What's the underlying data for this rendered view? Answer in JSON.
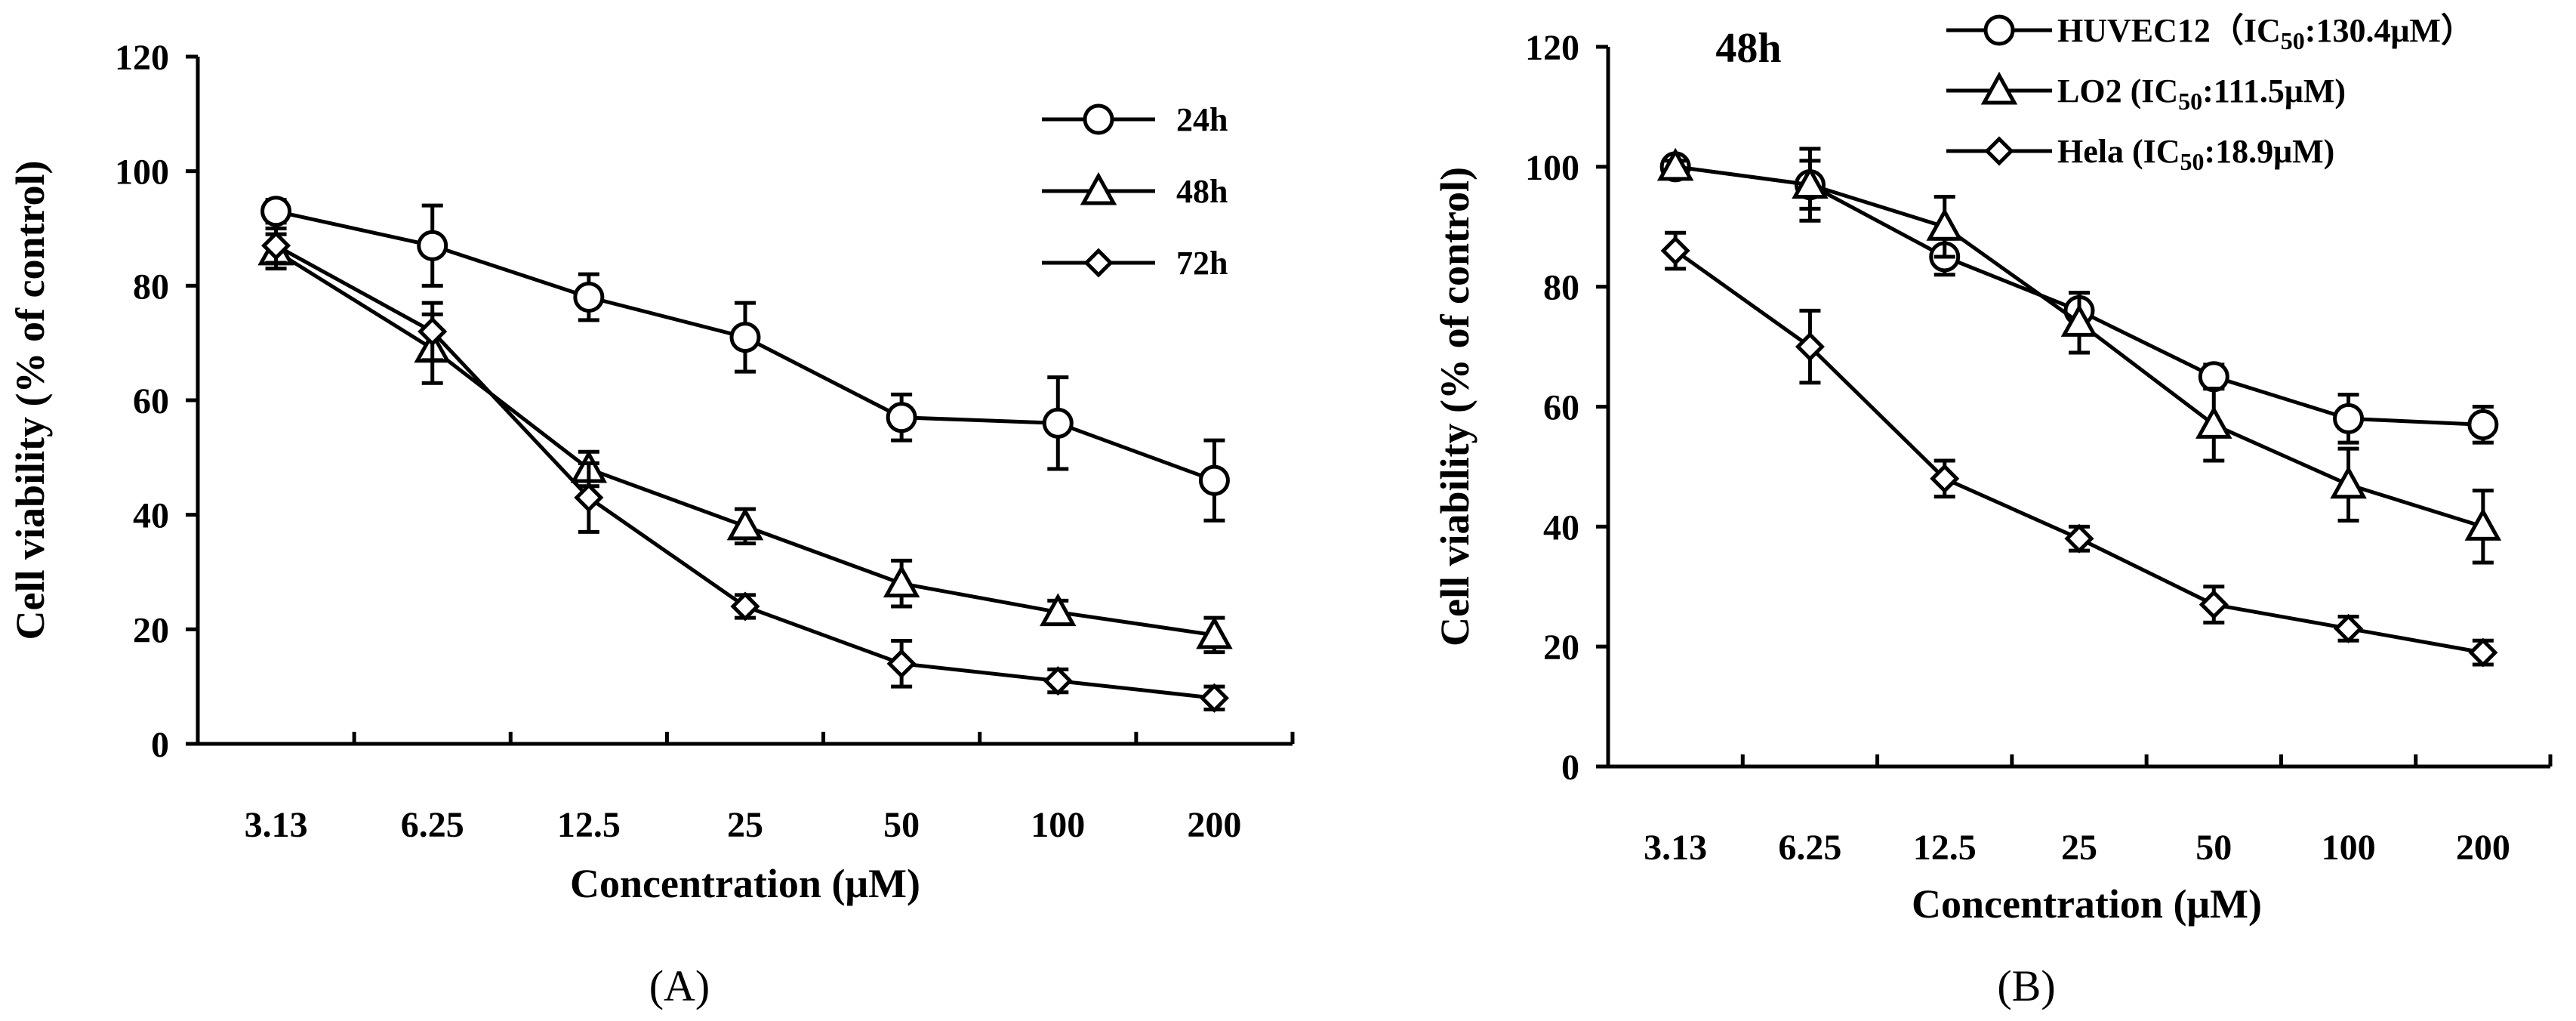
{
  "chart_data": [
    {
      "type": "line",
      "panel_label": "(A)",
      "annotation": "",
      "xlabel": "Concentration (μM)",
      "ylabel": "Cell viability (% of control)",
      "categories": [
        "3.13",
        "6.25",
        "12.5",
        "25",
        "50",
        "100",
        "200"
      ],
      "yticks": [
        "0",
        "20",
        "40",
        "60",
        "80",
        "100",
        "120"
      ],
      "ylim": [
        0,
        120
      ],
      "legend_position": "top-right",
      "series": [
        {
          "name": "24h",
          "marker": "circle",
          "values": [
            93,
            87,
            78,
            71,
            57,
            56,
            46
          ],
          "errors": [
            2,
            7,
            4,
            6,
            4,
            8,
            7
          ]
        },
        {
          "name": "48h",
          "marker": "triangle",
          "values": [
            86,
            69,
            48,
            38,
            28,
            23,
            19
          ],
          "errors": [
            3,
            6,
            3,
            3,
            4,
            2,
            3
          ]
        },
        {
          "name": "72h",
          "marker": "diamond",
          "values": [
            87,
            72,
            43,
            24,
            14,
            11,
            8
          ],
          "errors": [
            3,
            5,
            6,
            2,
            4,
            2,
            2
          ]
        }
      ]
    },
    {
      "type": "line",
      "panel_label": "(B)",
      "annotation": "48h",
      "xlabel": "Concentration (μM)",
      "ylabel": "Cell viability (% of control)",
      "categories": [
        "3.13",
        "6.25",
        "12.5",
        "25",
        "50",
        "100",
        "200"
      ],
      "yticks": [
        "0",
        "20",
        "40",
        "60",
        "80",
        "100",
        "120"
      ],
      "ylim": [
        0,
        120
      ],
      "legend_position": "top-right",
      "series": [
        {
          "name": "HUVEC12",
          "legend_prefix": "HUVEC12（IC",
          "legend_sub": "50",
          "legend_suffix": ":130.4μM）",
          "marker": "circle",
          "values": [
            100,
            97,
            85,
            76,
            65,
            58,
            57
          ],
          "errors": [
            1,
            4,
            3,
            3,
            2,
            4,
            3
          ]
        },
        {
          "name": "LO2",
          "legend_prefix": "LO2 (IC",
          "legend_sub": "50",
          "legend_suffix": ":111.5μM)",
          "marker": "triangle",
          "values": [
            100,
            97,
            90,
            74,
            57,
            47,
            40
          ],
          "errors": [
            1,
            6,
            5,
            5,
            6,
            6,
            6
          ]
        },
        {
          "name": "Hela",
          "legend_prefix": "Hela (IC",
          "legend_sub": "50",
          "legend_suffix": ":18.9μM)",
          "marker": "diamond",
          "values": [
            86,
            70,
            48,
            38,
            27,
            23,
            19
          ],
          "errors": [
            3,
            6,
            3,
            2,
            3,
            2,
            2
          ]
        }
      ]
    }
  ]
}
